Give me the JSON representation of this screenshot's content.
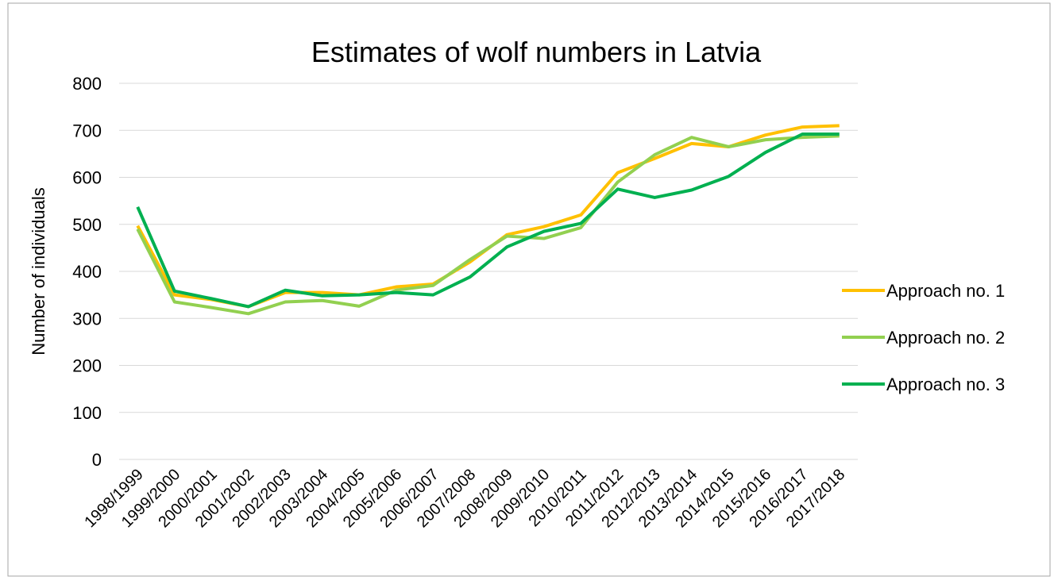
{
  "chart_data": {
    "type": "line",
    "title": "Estimates of wolf numbers in Latvia",
    "y_label": "Number of individuals",
    "categories": [
      "1998/1999",
      "1999/2000",
      "2000/2001",
      "2001/2002",
      "2002/2003",
      "2003/2004",
      "2004/2005",
      "2005/2006",
      "2006/2007",
      "2007/2008",
      "2008/2009",
      "2009/2010",
      "2010/2011",
      "2011/2012",
      "2012/2013",
      "2013/2014",
      "2014/2015",
      "2015/2016",
      "2016/2017",
      "2017/2018"
    ],
    "series": [
      {
        "name": "Approach no. 1",
        "color": "#ffc000",
        "values": [
          497,
          350,
          340,
          325,
          355,
          355,
          350,
          367,
          373,
          420,
          478,
          495,
          520,
          610,
          640,
          672,
          665,
          690,
          707,
          710
        ]
      },
      {
        "name": "Approach no. 2",
        "color": "#92d050",
        "values": [
          490,
          335,
          323,
          310,
          335,
          338,
          326,
          360,
          370,
          425,
          475,
          470,
          493,
          590,
          648,
          685,
          665,
          680,
          685,
          688
        ]
      },
      {
        "name": "Approach no. 3",
        "color": "#00b050",
        "values": [
          537,
          358,
          342,
          325,
          360,
          348,
          350,
          355,
          350,
          388,
          452,
          485,
          502,
          575,
          557,
          573,
          602,
          653,
          692,
          692
        ]
      }
    ],
    "ylim": [
      0,
      800
    ],
    "yticks": [
      0,
      100,
      200,
      300,
      400,
      500,
      600,
      700,
      800
    ],
    "grid": true,
    "legend": "right"
  }
}
